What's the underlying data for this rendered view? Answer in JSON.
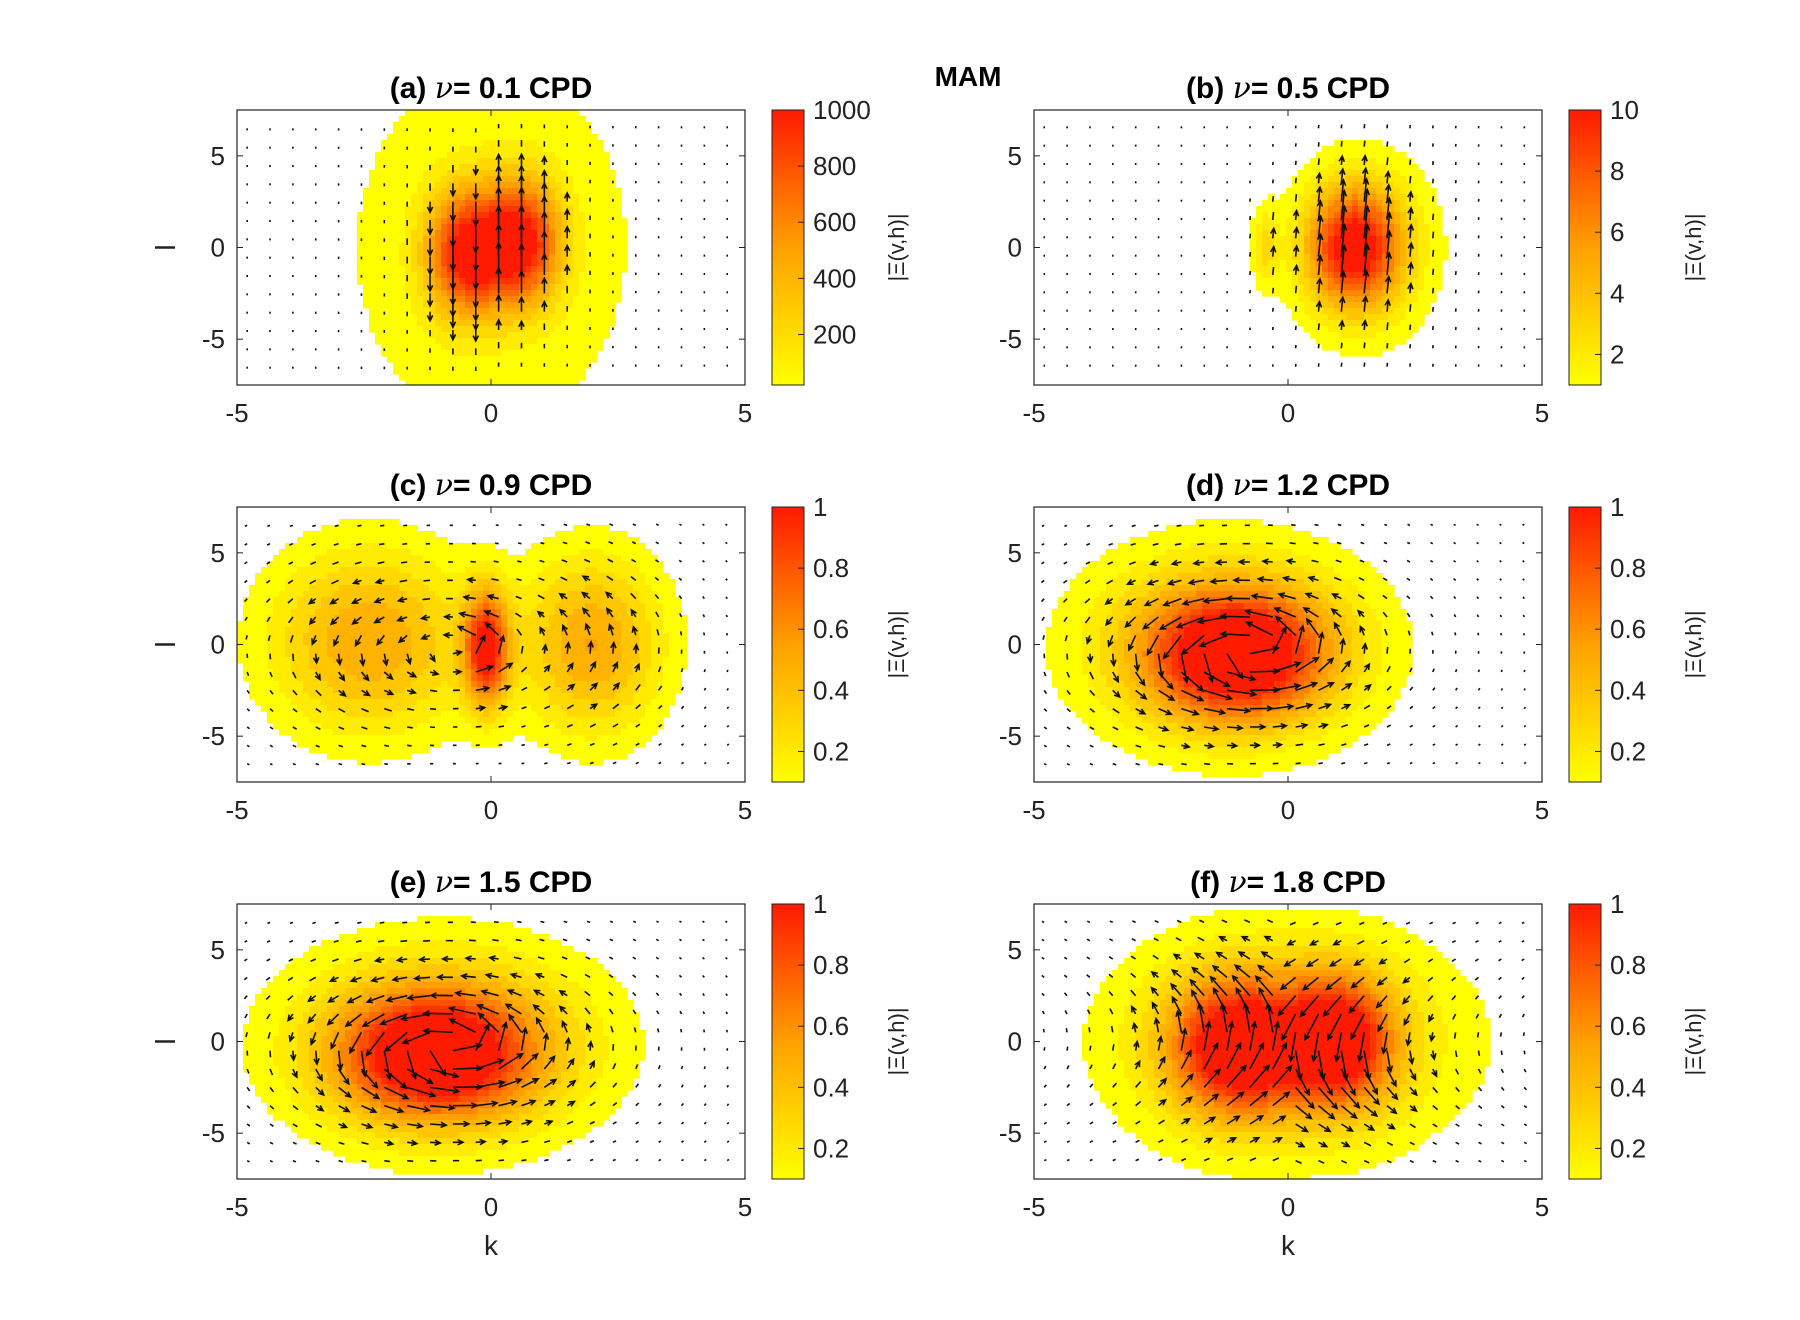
{
  "figure": {
    "suptitle": "MAM"
  },
  "chart_data": [
    {
      "panel": "a",
      "type": "heatmap",
      "title_prefix": "(a)",
      "title_nu": "ν",
      "title_value": "= 0.1 CPD",
      "xlabel": "",
      "ylabel": "l",
      "xlim": [
        -5,
        5
      ],
      "ylim": [
        -7.5,
        7.5
      ],
      "xticks": [
        -5,
        0,
        5
      ],
      "yticks": [
        -5,
        0,
        5
      ],
      "colorbar": {
        "label": "|Ξ(v,h)|",
        "clim": [
          20,
          1000
        ],
        "ticks": [
          200,
          400,
          600,
          800,
          1000
        ]
      },
      "lobes": [
        {
          "k": -0.5,
          "l": -0.3,
          "sk": 0.55,
          "sl": 2.4,
          "amp": 1000
        },
        {
          "k": 0.6,
          "l": 0.3,
          "sk": 0.55,
          "sl": 2.4,
          "amp": 1000
        },
        {
          "k": 0.0,
          "l": 0.0,
          "sk": 1.5,
          "sl": 5.5,
          "amp": 90
        }
      ],
      "vector_pattern": "vertical-dipole",
      "vector_strength": 1.0
    },
    {
      "panel": "b",
      "type": "heatmap",
      "title_prefix": "(b)",
      "title_nu": "ν",
      "title_value": "= 0.5 CPD",
      "xlabel": "",
      "ylabel": "",
      "xlim": [
        -5,
        5
      ],
      "ylim": [
        -7.5,
        7.5
      ],
      "xticks": [
        -5,
        0,
        5
      ],
      "yticks": [
        -5,
        0,
        5
      ],
      "colorbar": {
        "label": "|Ξ(v,h)|",
        "clim": [
          1,
          10
        ],
        "ticks": [
          2,
          4,
          6,
          8,
          10
        ]
      },
      "lobes": [
        {
          "k": 1.3,
          "l": 0.0,
          "sk": 0.65,
          "sl": 2.3,
          "amp": 10
        },
        {
          "k": 1.6,
          "l": 0.0,
          "sk": 1.1,
          "sl": 4.0,
          "amp": 2.0
        },
        {
          "k": -0.45,
          "l": 0.0,
          "sk": 0.18,
          "sl": 1.6,
          "amp": 2.6
        }
      ],
      "vector_pattern": "vertical-right",
      "vector_strength": 1.0
    },
    {
      "panel": "c",
      "type": "heatmap",
      "title_prefix": "(c)",
      "title_nu": "ν",
      "title_value": "= 0.9 CPD",
      "xlabel": "",
      "ylabel": "l",
      "xlim": [
        -5,
        5
      ],
      "ylim": [
        -7.5,
        7.5
      ],
      "xticks": [
        -5,
        0,
        5
      ],
      "yticks": [
        -5,
        0,
        5
      ],
      "colorbar": {
        "label": "|Ξ(v,h)|",
        "clim": [
          0.1,
          1
        ],
        "ticks": [
          0.2,
          0.4,
          0.6,
          0.8,
          1
        ]
      },
      "lobes": [
        {
          "k": -0.1,
          "l": -0.2,
          "sk": 0.3,
          "sl": 2.2,
          "amp": 1.0
        },
        {
          "k": -2.4,
          "l": 0.2,
          "sk": 1.4,
          "sl": 3.6,
          "amp": 0.55
        },
        {
          "k": 2.0,
          "l": 0.0,
          "sk": 1.0,
          "sl": 3.5,
          "amp": 0.55
        }
      ],
      "vector_pattern": "gyre-left",
      "vector_strength": 0.6
    },
    {
      "panel": "d",
      "type": "heatmap",
      "title_prefix": "(d)",
      "title_nu": "ν",
      "title_value": "= 1.2 CPD",
      "xlabel": "",
      "ylabel": "",
      "xlim": [
        -5,
        5
      ],
      "ylim": [
        -7.5,
        7.5
      ],
      "xticks": [
        -5,
        0,
        5
      ],
      "yticks": [
        -5,
        0,
        5
      ],
      "colorbar": {
        "label": "|Ξ(v,h)|",
        "clim": [
          0.1,
          1
        ],
        "ticks": [
          0.2,
          0.4,
          0.6,
          0.8,
          1
        ]
      },
      "lobes": [
        {
          "k": -1.0,
          "l": -0.6,
          "sk": 1.2,
          "sl": 2.4,
          "amp": 1.0
        },
        {
          "k": -1.2,
          "l": 0.0,
          "sk": 2.0,
          "sl": 3.8,
          "amp": 0.45
        }
      ],
      "vector_pattern": "gyre",
      "vector_strength": 0.9
    },
    {
      "panel": "e",
      "type": "heatmap",
      "title_prefix": "(e)",
      "title_nu": "ν",
      "title_value": "= 1.5 CPD",
      "xlabel": "k",
      "ylabel": "l",
      "xlim": [
        -5,
        5
      ],
      "ylim": [
        -7.5,
        7.5
      ],
      "xticks": [
        -5,
        0,
        5
      ],
      "yticks": [
        -5,
        0,
        5
      ],
      "colorbar": {
        "label": "|Ξ(v,h)|",
        "clim": [
          0.1,
          1
        ],
        "ticks": [
          0.2,
          0.4,
          0.6,
          0.8,
          1
        ]
      },
      "lobes": [
        {
          "k": -1.1,
          "l": -0.8,
          "sk": 1.3,
          "sl": 2.4,
          "amp": 1.0
        },
        {
          "k": -0.9,
          "l": 0.0,
          "sk": 2.2,
          "sl": 3.8,
          "amp": 0.45
        }
      ],
      "vector_pattern": "gyre",
      "vector_strength": 0.9
    },
    {
      "panel": "f",
      "type": "heatmap",
      "title_prefix": "(f)",
      "title_nu": "ν",
      "title_value": "= 1.8 CPD",
      "xlabel": "k",
      "ylabel": "",
      "xlim": [
        -5,
        5
      ],
      "ylim": [
        -7.5,
        7.5
      ],
      "xticks": [
        -5,
        0,
        5
      ],
      "yticks": [
        -5,
        0,
        5
      ],
      "colorbar": {
        "label": "|Ξ(v,h)|",
        "clim": [
          0.1,
          1
        ],
        "ticks": [
          0.2,
          0.4,
          0.6,
          0.8,
          1
        ]
      },
      "lobes": [
        {
          "k": -1.0,
          "l": -0.3,
          "sk": 0.9,
          "sl": 2.6,
          "amp": 1.0
        },
        {
          "k": 1.0,
          "l": 0.0,
          "sk": 0.75,
          "sl": 2.5,
          "amp": 0.95
        },
        {
          "k": 0.0,
          "l": 0.0,
          "sk": 2.4,
          "sl": 4.2,
          "amp": 0.4
        }
      ],
      "vector_pattern": "gyre-split",
      "vector_strength": 0.9
    }
  ],
  "colors": {
    "low": "#ffff00",
    "mid": "#ffa000",
    "high": "#ff1a00",
    "arrow": "#111111"
  }
}
